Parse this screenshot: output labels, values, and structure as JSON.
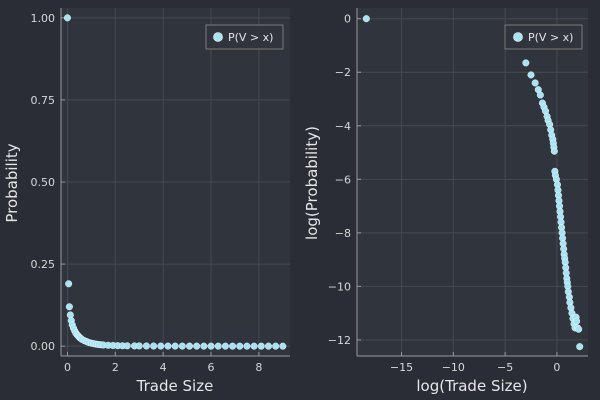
{
  "theme": {
    "background": "#2a2d36",
    "plot_background": "#30343c",
    "grid": "#454950",
    "axis": "#9a9a9a",
    "marker": "#a6e3f4",
    "marker_stroke": "#ffffff"
  },
  "chart_data": [
    {
      "type": "scatter",
      "title": "",
      "xlabel": "Trade Size",
      "ylabel": "Probability",
      "xlim": [
        -0.27,
        9.3
      ],
      "ylim": [
        -0.03,
        1.03
      ],
      "xticks": [
        0,
        2,
        4,
        6,
        8
      ],
      "xtick_labels": [
        "0",
        "2",
        "4",
        "6",
        "8"
      ],
      "yticks": [
        0,
        0.25,
        0.5,
        0.75,
        1.0
      ],
      "ytick_labels": [
        "0.00",
        "0.25",
        "0.50",
        "0.75",
        "1.00"
      ],
      "grid": true,
      "legend_position": "top-right",
      "series": [
        {
          "name": "P(V > x)",
          "x": [
            0.0,
            0.05,
            0.08,
            0.12,
            0.16,
            0.2,
            0.25,
            0.3,
            0.35,
            0.4,
            0.45,
            0.5,
            0.55,
            0.6,
            0.7,
            0.8,
            0.9,
            1.0,
            1.1,
            1.2,
            1.3,
            1.4,
            1.5,
            1.7,
            1.9,
            2.1,
            2.3,
            2.5,
            2.8,
            3.0,
            3.3,
            3.6,
            3.9,
            4.2,
            4.5,
            4.8,
            5.1,
            5.4,
            5.7,
            6.0,
            6.3,
            6.6,
            6.9,
            7.2,
            7.5,
            7.8,
            8.1,
            8.4,
            8.7,
            9.0
          ],
          "y": [
            1.0,
            0.19,
            0.12,
            0.095,
            0.078,
            0.065,
            0.055,
            0.047,
            0.04,
            0.035,
            0.031,
            0.027,
            0.024,
            0.021,
            0.017,
            0.014,
            0.011,
            0.009,
            0.0075,
            0.006,
            0.005,
            0.0042,
            0.0035,
            0.0026,
            0.002,
            0.0015,
            0.0012,
            0.001,
            0.0008,
            0.0007,
            0.0005,
            0.0004,
            0.0003,
            0.00025,
            0.0002,
            0.00015,
            0.00012,
            0.0001,
            8e-05,
            6e-05,
            5e-05,
            4e-05,
            3e-05,
            2e-05,
            2e-05,
            1e-05,
            1e-05,
            1e-05,
            5e-06,
            0.0
          ]
        }
      ]
    },
    {
      "type": "scatter",
      "title": "",
      "xlabel": "log(Trade Size)",
      "ylabel": "log(Probability)",
      "xlim": [
        -19.3,
        3.0
      ],
      "ylim": [
        -12.6,
        0.4
      ],
      "xticks": [
        -15,
        -10,
        -5,
        0
      ],
      "xtick_labels": [
        "−15",
        "−10",
        "−5",
        "0"
      ],
      "yticks": [
        0,
        -2,
        -4,
        -6,
        -8,
        -10,
        -12
      ],
      "ytick_labels": [
        "0",
        "−2",
        "−4",
        "−6",
        "−8",
        "−10",
        "−12"
      ],
      "grid": true,
      "legend_position": "top-right",
      "series": [
        {
          "name": "P(V > x)",
          "x": [
            -18.4,
            -3.0,
            -2.5,
            -2.1,
            -1.8,
            -1.6,
            -1.4,
            -1.25,
            -1.1,
            -0.95,
            -0.85,
            -0.7,
            -0.6,
            -0.5,
            -0.4,
            -0.35,
            -0.3,
            -0.25,
            -0.2,
            -0.15,
            -0.05,
            0.05,
            0.1,
            0.15,
            0.2,
            0.25,
            0.3,
            0.35,
            0.4,
            0.45,
            0.5,
            0.55,
            0.6,
            0.65,
            0.7,
            0.75,
            0.8,
            0.85,
            0.9,
            0.95,
            1.0,
            1.05,
            1.1,
            1.2,
            1.25,
            1.35,
            1.45,
            1.55,
            1.65,
            1.75,
            1.85,
            1.9,
            2.0,
            2.1,
            2.2
          ],
          "y": [
            0.0,
            -1.65,
            -2.1,
            -2.4,
            -2.65,
            -2.85,
            -3.15,
            -3.3,
            -3.45,
            -3.65,
            -3.8,
            -3.95,
            -4.15,
            -4.35,
            -4.5,
            -4.65,
            -4.8,
            -4.95,
            -5.7,
            -5.85,
            -6.0,
            -6.2,
            -6.4,
            -6.6,
            -6.8,
            -7.0,
            -7.2,
            -7.4,
            -7.6,
            -7.8,
            -8.0,
            -8.2,
            -8.4,
            -8.6,
            -8.8,
            -8.95,
            -9.1,
            -9.3,
            -9.5,
            -9.7,
            -9.85,
            -10.0,
            -10.2,
            -10.4,
            -10.6,
            -10.8,
            -11.0,
            -11.2,
            -11.4,
            -11.55,
            -11.15,
            -11.3,
            -11.55,
            -11.6,
            -12.25
          ]
        }
      ]
    }
  ]
}
